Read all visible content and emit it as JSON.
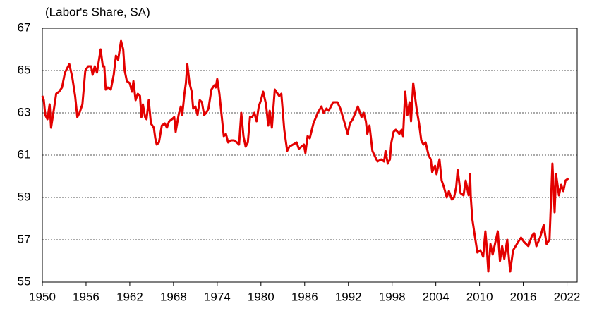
{
  "chart_data": {
    "type": "line",
    "subtitle": "(Labor's Share, SA)",
    "x": [
      1950.0,
      1950.2,
      1950.4,
      1950.7,
      1951.0,
      1951.2,
      1951.6,
      1951.9,
      1952.3,
      1952.7,
      1953.1,
      1953.7,
      1954.1,
      1954.5,
      1954.8,
      1955.1,
      1955.5,
      1955.9,
      1956.3,
      1956.7,
      1956.9,
      1957.2,
      1957.5,
      1958.0,
      1958.3,
      1958.5,
      1958.7,
      1959.0,
      1959.4,
      1959.8,
      1960.1,
      1960.4,
      1960.8,
      1961.1,
      1961.3,
      1961.6,
      1962.0,
      1962.3,
      1962.5,
      1962.8,
      1963.1,
      1963.4,
      1963.6,
      1963.8,
      1964.1,
      1964.3,
      1964.6,
      1964.9,
      1965.3,
      1965.5,
      1965.7,
      1966.0,
      1966.4,
      1966.8,
      1967.1,
      1967.4,
      1967.8,
      1968.1,
      1968.3,
      1968.7,
      1969.0,
      1969.2,
      1969.5,
      1969.7,
      1969.9,
      1970.2,
      1970.5,
      1970.7,
      1971.0,
      1971.3,
      1971.6,
      1971.9,
      1972.2,
      1972.5,
      1972.8,
      1973.2,
      1973.6,
      1973.8,
      1974.0,
      1974.3,
      1974.6,
      1974.9,
      1975.2,
      1975.5,
      1975.9,
      1976.3,
      1976.7,
      1977.0,
      1977.3,
      1977.6,
      1977.9,
      1978.2,
      1978.5,
      1978.8,
      1979.1,
      1979.4,
      1979.7,
      1980.0,
      1980.3,
      1980.7,
      1981.0,
      1981.2,
      1981.5,
      1981.9,
      1982.5,
      1982.8,
      1983.2,
      1983.6,
      1983.9,
      1984.9,
      1985.2,
      1985.9,
      1986.1,
      1986.4,
      1986.7,
      1987.2,
      1987.8,
      1988.3,
      1988.6,
      1989.0,
      1989.3,
      1989.9,
      1990.5,
      1990.9,
      1991.5,
      1991.9,
      1992.2,
      1992.6,
      1993.3,
      1993.8,
      1994.1,
      1994.4,
      1994.6,
      1994.9,
      1995.2,
      1995.3,
      1995.7,
      1996.0,
      1996.5,
      1996.9,
      1997.1,
      1997.4,
      1997.7,
      1997.9,
      1998.2,
      1998.5,
      1999.0,
      1999.3,
      1999.5,
      1999.8,
      2000.1,
      2000.4,
      2000.6,
      2000.9,
      2001.4,
      2001.7,
      2002.0,
      2002.3,
      2002.6,
      2003.0,
      2003.3,
      2003.5,
      2003.9,
      2004.1,
      2004.5,
      2004.8,
      2005.1,
      2005.5,
      2005.8,
      2006.2,
      2006.5,
      2006.8,
      2007.0,
      2007.4,
      2007.8,
      2008.1,
      2008.5,
      2008.7,
      2008.8,
      2009.0,
      2009.3,
      2009.7,
      2010.1,
      2010.5,
      2010.8,
      2011.0,
      2011.2,
      2011.5,
      2011.8,
      2012.5,
      2012.8,
      2013.1,
      2013.4,
      2013.8,
      2014.2,
      2014.6,
      2015.3,
      2015.7,
      2016.1,
      2016.7,
      2017.2,
      2017.5,
      2017.8,
      2018.3,
      2018.8,
      2019.2,
      2019.6,
      2020.0,
      2020.3,
      2020.5,
      2020.9,
      2021.2,
      2021.5,
      2021.8,
      2022.2
    ],
    "series": [
      {
        "color": "#e30000",
        "values": [
          63.8,
          63.6,
          62.9,
          62.7,
          63.4,
          62.3,
          63.2,
          63.9,
          64.0,
          64.2,
          64.9,
          65.3,
          64.7,
          63.8,
          62.8,
          63.0,
          63.4,
          65.0,
          65.2,
          65.2,
          64.8,
          65.2,
          64.9,
          66.0,
          65.2,
          65.2,
          64.1,
          64.2,
          64.1,
          64.8,
          65.7,
          65.5,
          66.4,
          66.0,
          65.0,
          64.5,
          64.4,
          64.0,
          64.5,
          63.6,
          63.9,
          63.8,
          62.8,
          63.4,
          62.8,
          62.7,
          63.6,
          62.5,
          62.3,
          61.8,
          61.5,
          61.6,
          62.4,
          62.5,
          62.3,
          62.6,
          62.7,
          62.8,
          62.1,
          62.9,
          63.3,
          62.9,
          63.9,
          64.4,
          65.3,
          64.4,
          64.0,
          63.2,
          63.3,
          62.9,
          63.6,
          63.5,
          62.9,
          63.0,
          63.2,
          64.1,
          64.3,
          64.2,
          64.6,
          63.9,
          62.9,
          61.9,
          62.0,
          61.6,
          61.7,
          61.7,
          61.6,
          61.5,
          63.0,
          61.9,
          61.4,
          61.6,
          62.8,
          62.8,
          63.0,
          62.6,
          63.3,
          63.6,
          64.0,
          63.4,
          62.4,
          63.1,
          62.3,
          64.1,
          63.8,
          63.9,
          62.2,
          61.2,
          61.4,
          61.6,
          61.3,
          61.5,
          61.1,
          61.9,
          61.8,
          62.5,
          63.0,
          63.3,
          63.0,
          63.2,
          63.1,
          63.5,
          63.5,
          63.2,
          62.5,
          62.0,
          62.5,
          62.7,
          63.3,
          62.8,
          63.0,
          62.6,
          62.0,
          62.4,
          61.5,
          61.2,
          60.9,
          60.7,
          60.8,
          60.7,
          61.2,
          60.6,
          60.8,
          61.6,
          62.1,
          62.2,
          62.0,
          62.2,
          61.9,
          64.0,
          62.9,
          63.5,
          62.6,
          64.4,
          63.1,
          62.5,
          61.7,
          61.5,
          61.6,
          61.0,
          60.8,
          60.2,
          60.5,
          60.1,
          60.8,
          59.8,
          59.5,
          59.0,
          59.3,
          58.9,
          59.0,
          59.5,
          60.3,
          59.2,
          59.1,
          59.8,
          59.1,
          60.1,
          59.0,
          58.0,
          57.3,
          56.4,
          56.5,
          56.2,
          57.4,
          56.6,
          55.5,
          56.8,
          56.3,
          57.4,
          56.0,
          56.7,
          56.1,
          57.0,
          55.5,
          56.5,
          56.9,
          57.1,
          56.9,
          56.7,
          57.2,
          57.3,
          56.7,
          57.1,
          57.7,
          56.8,
          57.0,
          60.6,
          58.3,
          60.1,
          59.1,
          59.6,
          59.3,
          59.8,
          59.9
        ]
      }
    ],
    "xlim": [
      1950,
      2023.4
    ],
    "xticks": [
      1950,
      1956,
      1962,
      1968,
      1974,
      1980,
      1986,
      1992,
      1998,
      2004,
      2010,
      2016,
      2022
    ],
    "ylim": [
      55,
      67
    ],
    "yticks": [
      55,
      57,
      59,
      61,
      63,
      65,
      67
    ],
    "grid": true
  }
}
